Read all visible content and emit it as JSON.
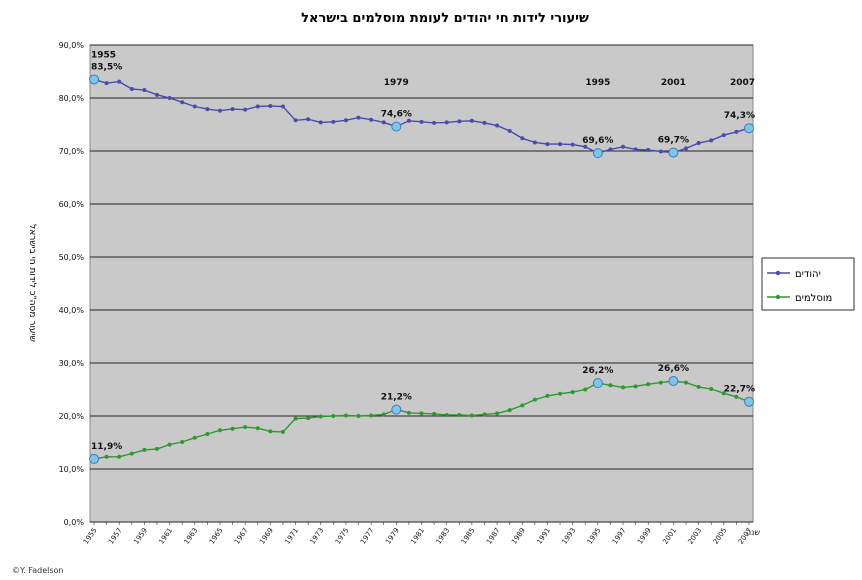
{
  "chart_data": {
    "type": "line",
    "title": "שיעורי לידות חי יהודים לעומת מוסלמים בישראל",
    "ylabel": "שיעור מסה\"כ לידות חי בישראל",
    "xlabel": "שנה",
    "ylim": [
      0,
      90
    ],
    "yticks": [
      "0,0%",
      "10,0%",
      "20,0%",
      "30,0%",
      "40,0%",
      "50,0%",
      "60,0%",
      "70,0%",
      "80,0%",
      "90,0%"
    ],
    "x": [
      1955,
      1956,
      1957,
      1958,
      1959,
      1960,
      1961,
      1962,
      1963,
      1964,
      1965,
      1966,
      1967,
      1968,
      1969,
      1970,
      1971,
      1972,
      1973,
      1974,
      1975,
      1976,
      1977,
      1978,
      1979,
      1980,
      1981,
      1982,
      1983,
      1984,
      1985,
      1986,
      1987,
      1988,
      1989,
      1990,
      1991,
      1992,
      1993,
      1994,
      1995,
      1996,
      1997,
      1998,
      1999,
      2000,
      2001,
      2002,
      2003,
      2004,
      2005,
      2006,
      2007
    ],
    "xtick_labels": [
      "1955",
      "1957",
      "1959",
      "1961",
      "1963",
      "1965",
      "1967",
      "1969",
      "1971",
      "1973",
      "1975",
      "1977",
      "1979",
      "1981",
      "1983",
      "1985",
      "1987",
      "1989",
      "1991",
      "1993",
      "1995",
      "1997",
      "1999",
      "2001",
      "2003",
      "2005",
      "2007"
    ],
    "series": [
      {
        "name": "יהודים",
        "color": "#4a4ab0",
        "values": [
          83.5,
          82.8,
          83.1,
          81.7,
          81.5,
          80.6,
          80.0,
          79.2,
          78.4,
          77.9,
          77.6,
          77.9,
          77.8,
          78.4,
          78.5,
          78.4,
          75.8,
          76.0,
          75.4,
          75.5,
          75.8,
          76.3,
          75.9,
          75.4,
          74.6,
          75.7,
          75.5,
          75.3,
          75.4,
          75.6,
          75.7,
          75.3,
          74.8,
          73.8,
          72.4,
          71.6,
          71.3,
          71.3,
          71.2,
          70.8,
          69.6,
          70.3,
          70.8,
          70.3,
          70.2,
          69.9,
          69.7,
          70.5,
          71.5,
          72.0,
          73.0,
          73.6,
          74.3
        ]
      },
      {
        "name": "מוסלמים",
        "color": "#2e9a2e",
        "values": [
          11.9,
          12.3,
          12.3,
          12.9,
          13.6,
          13.8,
          14.6,
          15.1,
          15.9,
          16.6,
          17.3,
          17.6,
          17.9,
          17.7,
          17.1,
          17.0,
          19.5,
          19.6,
          19.9,
          20.0,
          20.1,
          20.0,
          20.1,
          20.3,
          21.2,
          20.6,
          20.5,
          20.4,
          20.2,
          20.2,
          20.1,
          20.3,
          20.5,
          21.1,
          22.0,
          23.1,
          23.8,
          24.2,
          24.5,
          25.0,
          26.2,
          25.8,
          25.4,
          25.6,
          26.0,
          26.3,
          26.6,
          26.3,
          25.5,
          25.1,
          24.3,
          23.6,
          22.7
        ]
      }
    ],
    "highlights": [
      {
        "series": 0,
        "year": 1955,
        "label": "83,5%",
        "year_label": "1955"
      },
      {
        "series": 0,
        "year": 1979,
        "label": "74,6%",
        "year_label": "1979"
      },
      {
        "series": 0,
        "year": 1995,
        "label": "69,6%",
        "year_label": "1995"
      },
      {
        "series": 0,
        "year": 2001,
        "label": "69,7%",
        "year_label": "2001"
      },
      {
        "series": 0,
        "year": 2007,
        "label": "74,3%",
        "year_label": "2007"
      },
      {
        "series": 1,
        "year": 1955,
        "label": "11,9%"
      },
      {
        "series": 1,
        "year": 1979,
        "label": "21,2%"
      },
      {
        "series": 1,
        "year": 1995,
        "label": "26,2%"
      },
      {
        "series": 1,
        "year": 2001,
        "label": "26,6%"
      },
      {
        "series": 1,
        "year": 2007,
        "label": "22,7%"
      }
    ],
    "legend_position": "right",
    "grid": true
  },
  "credit": "©Y. Fadelson"
}
